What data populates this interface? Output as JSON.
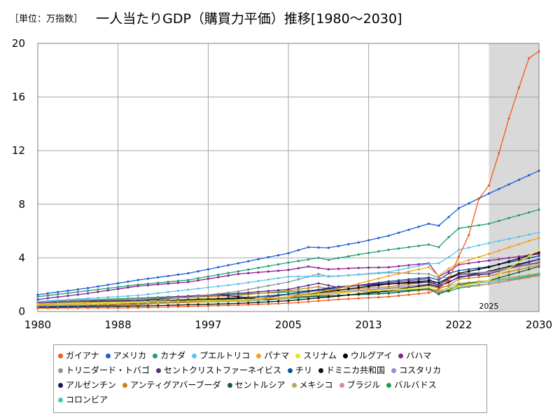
{
  "header": {
    "unit": "［単位：万指数］",
    "title": "一人当たりGDP（購買力平価）推移[1980～2030]"
  },
  "chart_data": {
    "type": "line",
    "title": "一人当たりGDP（購買力平価）推移[1980～2030]",
    "unit": "［単位：万指数］",
    "x_ticks": [
      1980,
      1988,
      1997,
      2005,
      2013,
      2022,
      2030
    ],
    "y_ticks": [
      0,
      4,
      8,
      12,
      16,
      20
    ],
    "xlim": [
      1980,
      2030
    ],
    "ylim": [
      0,
      20
    ],
    "grid": true,
    "legend_position": "bottom",
    "forecast_start": 2025,
    "forecast_label": "2025",
    "series": [
      {
        "name": "ガイアナ",
        "color": "#f05a1e",
        "anchors": [
          [
            1980,
            0.25
          ],
          [
            1990,
            0.28
          ],
          [
            2000,
            0.48
          ],
          [
            2005,
            0.62
          ],
          [
            2010,
            0.9
          ],
          [
            2015,
            1.1
          ],
          [
            2019,
            1.4
          ],
          [
            2020,
            1.65
          ],
          [
            2021,
            2.4
          ],
          [
            2022,
            4.1
          ],
          [
            2023,
            5.7
          ],
          [
            2024,
            8.4
          ],
          [
            2025,
            9.4
          ],
          [
            2026,
            11.8
          ],
          [
            2027,
            14.4
          ],
          [
            2028,
            16.7
          ],
          [
            2029,
            18.9
          ],
          [
            2030,
            19.4
          ]
        ]
      },
      {
        "name": "アメリカ",
        "color": "#1e5fd6",
        "anchors": [
          [
            1980,
            1.25
          ],
          [
            1985,
            1.75
          ],
          [
            1990,
            2.35
          ],
          [
            1995,
            2.85
          ],
          [
            2000,
            3.6
          ],
          [
            2005,
            4.35
          ],
          [
            2007,
            4.8
          ],
          [
            2009,
            4.75
          ],
          [
            2012,
            5.15
          ],
          [
            2015,
            5.65
          ],
          [
            2019,
            6.55
          ],
          [
            2020,
            6.4
          ],
          [
            2021,
            7.05
          ],
          [
            2022,
            7.7
          ],
          [
            2025,
            8.8
          ],
          [
            2030,
            10.5
          ]
        ]
      },
      {
        "name": "カナダ",
        "color": "#1f9e72",
        "anchors": [
          [
            1980,
            1.1
          ],
          [
            1985,
            1.55
          ],
          [
            1990,
            2.0
          ],
          [
            1995,
            2.35
          ],
          [
            2000,
            3.0
          ],
          [
            2005,
            3.65
          ],
          [
            2008,
            4.0
          ],
          [
            2009,
            3.85
          ],
          [
            2012,
            4.25
          ],
          [
            2015,
            4.6
          ],
          [
            2019,
            5.0
          ],
          [
            2020,
            4.8
          ],
          [
            2021,
            5.55
          ],
          [
            2022,
            6.2
          ],
          [
            2025,
            6.55
          ],
          [
            2030,
            7.6
          ]
        ]
      },
      {
        "name": "プエルトリコ",
        "color": "#5bc4ef",
        "anchors": [
          [
            1980,
            0.75
          ],
          [
            1990,
            1.2
          ],
          [
            2000,
            2.05
          ],
          [
            2005,
            2.6
          ],
          [
            2010,
            2.65
          ],
          [
            2015,
            2.95
          ],
          [
            2019,
            3.55
          ],
          [
            2020,
            3.6
          ],
          [
            2021,
            4.05
          ],
          [
            2022,
            4.6
          ],
          [
            2025,
            5.1
          ],
          [
            2030,
            5.9
          ]
        ]
      },
      {
        "name": "パナマ",
        "color": "#f0a21c",
        "anchors": [
          [
            1980,
            0.45
          ],
          [
            1990,
            0.55
          ],
          [
            2000,
            0.8
          ],
          [
            2005,
            1.05
          ],
          [
            2010,
            1.7
          ],
          [
            2015,
            2.65
          ],
          [
            2019,
            3.3
          ],
          [
            2020,
            2.65
          ],
          [
            2021,
            3.2
          ],
          [
            2022,
            3.6
          ],
          [
            2025,
            4.3
          ],
          [
            2030,
            5.5
          ]
        ]
      },
      {
        "name": "スリナム",
        "color": "#e8e21e",
        "anchors": [
          [
            1980,
            0.55
          ],
          [
            1990,
            0.7
          ],
          [
            2000,
            0.85
          ],
          [
            2005,
            1.1
          ],
          [
            2010,
            1.4
          ],
          [
            2015,
            1.6
          ],
          [
            2019,
            1.8
          ],
          [
            2020,
            1.6
          ],
          [
            2021,
            1.7
          ],
          [
            2022,
            1.9
          ],
          [
            2025,
            2.3
          ],
          [
            2030,
            4.6
          ]
        ]
      },
      {
        "name": "ウルグアイ",
        "color": "#000000",
        "anchors": [
          [
            1980,
            0.55
          ],
          [
            1990,
            0.7
          ],
          [
            2000,
            1.0
          ],
          [
            2003,
            0.9
          ],
          [
            2005,
            1.1
          ],
          [
            2010,
            1.6
          ],
          [
            2015,
            2.05
          ],
          [
            2019,
            2.3
          ],
          [
            2020,
            2.15
          ],
          [
            2021,
            2.5
          ],
          [
            2022,
            2.85
          ],
          [
            2025,
            3.3
          ],
          [
            2030,
            4.4
          ]
        ]
      },
      {
        "name": "バハマ",
        "color": "#8e1a95",
        "anchors": [
          [
            1980,
            0.9
          ],
          [
            1985,
            1.35
          ],
          [
            1990,
            1.9
          ],
          [
            1995,
            2.2
          ],
          [
            2000,
            2.8
          ],
          [
            2005,
            3.1
          ],
          [
            2007,
            3.35
          ],
          [
            2009,
            3.15
          ],
          [
            2012,
            3.25
          ],
          [
            2015,
            3.3
          ],
          [
            2019,
            3.6
          ],
          [
            2020,
            2.6
          ],
          [
            2021,
            3.0
          ],
          [
            2022,
            3.5
          ],
          [
            2025,
            3.8
          ],
          [
            2030,
            4.3
          ]
        ]
      },
      {
        "name": "トリニダード・トバゴ",
        "color": "#8a959a",
        "anchors": [
          [
            1980,
            0.75
          ],
          [
            1990,
            0.95
          ],
          [
            1995,
            1.05
          ],
          [
            2000,
            1.5
          ],
          [
            2005,
            2.2
          ],
          [
            2008,
            2.8
          ],
          [
            2009,
            2.6
          ],
          [
            2012,
            2.75
          ],
          [
            2015,
            2.9
          ],
          [
            2019,
            2.8
          ],
          [
            2020,
            2.5
          ],
          [
            2021,
            2.55
          ],
          [
            2022,
            2.8
          ],
          [
            2025,
            2.95
          ],
          [
            2030,
            3.6
          ]
        ]
      },
      {
        "name": "セントクリストファーネイビス",
        "color": "#5b2e86",
        "anchors": [
          [
            1980,
            0.65
          ],
          [
            1990,
            0.95
          ],
          [
            2000,
            1.35
          ],
          [
            2005,
            1.65
          ],
          [
            2008,
            2.1
          ],
          [
            2010,
            1.8
          ],
          [
            2015,
            2.15
          ],
          [
            2019,
            2.45
          ],
          [
            2020,
            1.9
          ],
          [
            2021,
            2.15
          ],
          [
            2022,
            2.6
          ],
          [
            2025,
            2.8
          ],
          [
            2030,
            3.9
          ]
        ]
      },
      {
        "name": "チリ",
        "color": "#13509e",
        "anchors": [
          [
            1980,
            0.35
          ],
          [
            1990,
            0.5
          ],
          [
            2000,
            0.95
          ],
          [
            2005,
            1.3
          ],
          [
            2010,
            1.75
          ],
          [
            2015,
            2.25
          ],
          [
            2019,
            2.55
          ],
          [
            2020,
            2.35
          ],
          [
            2021,
            2.85
          ],
          [
            2022,
            3.05
          ],
          [
            2025,
            3.35
          ],
          [
            2030,
            4.15
          ]
        ]
      },
      {
        "name": "ドミニカ共和国",
        "color": "#111111",
        "anchors": [
          [
            1980,
            0.3
          ],
          [
            1990,
            0.4
          ],
          [
            2000,
            0.6
          ],
          [
            2005,
            0.8
          ],
          [
            2010,
            1.15
          ],
          [
            2015,
            1.55
          ],
          [
            2019,
            2.0
          ],
          [
            2020,
            1.85
          ],
          [
            2021,
            2.2
          ],
          [
            2022,
            2.55
          ],
          [
            2025,
            3.0
          ],
          [
            2030,
            3.9
          ]
        ]
      },
      {
        "name": "コスタリカ",
        "color": "#9b86cf",
        "anchors": [
          [
            1980,
            0.4
          ],
          [
            1990,
            0.55
          ],
          [
            2000,
            0.85
          ],
          [
            2005,
            1.1
          ],
          [
            2010,
            1.45
          ],
          [
            2015,
            1.75
          ],
          [
            2019,
            2.05
          ],
          [
            2020,
            1.95
          ],
          [
            2021,
            2.25
          ],
          [
            2022,
            2.5
          ],
          [
            2025,
            2.9
          ],
          [
            2030,
            3.85
          ]
        ]
      },
      {
        "name": "アルゼンチン",
        "color": "#25105d",
        "anchors": [
          [
            1980,
            0.75
          ],
          [
            1990,
            0.8
          ],
          [
            1998,
            1.25
          ],
          [
            2002,
            0.95
          ],
          [
            2005,
            1.3
          ],
          [
            2010,
            1.85
          ],
          [
            2015,
            2.05
          ],
          [
            2019,
            2.2
          ],
          [
            2020,
            2.0
          ],
          [
            2021,
            2.45
          ],
          [
            2022,
            2.75
          ],
          [
            2025,
            2.95
          ],
          [
            2030,
            3.65
          ]
        ]
      },
      {
        "name": "アンティグアバーブーダ",
        "color": "#c87f18",
        "anchors": [
          [
            1980,
            0.5
          ],
          [
            1990,
            0.9
          ],
          [
            2000,
            1.2
          ],
          [
            2005,
            1.55
          ],
          [
            2008,
            1.85
          ],
          [
            2010,
            1.6
          ],
          [
            2015,
            1.85
          ],
          [
            2019,
            2.2
          ],
          [
            2020,
            1.7
          ],
          [
            2021,
            1.95
          ],
          [
            2022,
            2.4
          ],
          [
            2025,
            2.65
          ],
          [
            2030,
            3.45
          ]
        ]
      },
      {
        "name": "セントルシア",
        "color": "#165b3e",
        "anchors": [
          [
            1980,
            0.35
          ],
          [
            1990,
            0.6
          ],
          [
            2000,
            0.85
          ],
          [
            2005,
            1.05
          ],
          [
            2010,
            1.2
          ],
          [
            2015,
            1.35
          ],
          [
            2019,
            1.7
          ],
          [
            2020,
            1.3
          ],
          [
            2021,
            1.6
          ],
          [
            2022,
            2.0
          ],
          [
            2025,
            2.3
          ],
          [
            2030,
            3.35
          ]
        ]
      },
      {
        "name": "メキシコ",
        "color": "#b3a95a",
        "anchors": [
          [
            1980,
            0.6
          ],
          [
            1990,
            0.8
          ],
          [
            2000,
            1.05
          ],
          [
            2005,
            1.25
          ],
          [
            2010,
            1.5
          ],
          [
            2015,
            1.7
          ],
          [
            2019,
            1.9
          ],
          [
            2020,
            1.75
          ],
          [
            2021,
            1.9
          ],
          [
            2022,
            2.1
          ],
          [
            2025,
            2.3
          ],
          [
            2030,
            2.85
          ]
        ]
      },
      {
        "name": "ブラジル",
        "color": "#d98a8f",
        "anchors": [
          [
            1980,
            0.55
          ],
          [
            1990,
            0.7
          ],
          [
            2000,
            0.85
          ],
          [
            2005,
            1.0
          ],
          [
            2010,
            1.35
          ],
          [
            2013,
            1.6
          ],
          [
            2016,
            1.5
          ],
          [
            2019,
            1.6
          ],
          [
            2020,
            1.5
          ],
          [
            2021,
            1.65
          ],
          [
            2022,
            1.85
          ],
          [
            2025,
            2.05
          ],
          [
            2030,
            2.65
          ]
        ]
      },
      {
        "name": "バルバドス",
        "color": "#19a04b",
        "anchors": [
          [
            1980,
            0.75
          ],
          [
            1990,
            1.0
          ],
          [
            2000,
            1.3
          ],
          [
            2005,
            1.45
          ],
          [
            2008,
            1.6
          ],
          [
            2010,
            1.45
          ],
          [
            2015,
            1.5
          ],
          [
            2019,
            1.7
          ],
          [
            2020,
            1.45
          ],
          [
            2021,
            1.5
          ],
          [
            2022,
            1.75
          ],
          [
            2025,
            2.05
          ],
          [
            2030,
            2.75
          ]
        ]
      },
      {
        "name": "コロンビア",
        "color": "#3fc9b6",
        "anchors": [
          [
            1980,
            0.45
          ],
          [
            1990,
            0.6
          ],
          [
            2000,
            0.75
          ],
          [
            2005,
            0.95
          ],
          [
            2010,
            1.2
          ],
          [
            2015,
            1.45
          ],
          [
            2019,
            1.65
          ],
          [
            2020,
            1.55
          ],
          [
            2021,
            1.75
          ],
          [
            2022,
            1.95
          ],
          [
            2025,
            2.2
          ],
          [
            2030,
            2.8
          ]
        ]
      }
    ]
  }
}
